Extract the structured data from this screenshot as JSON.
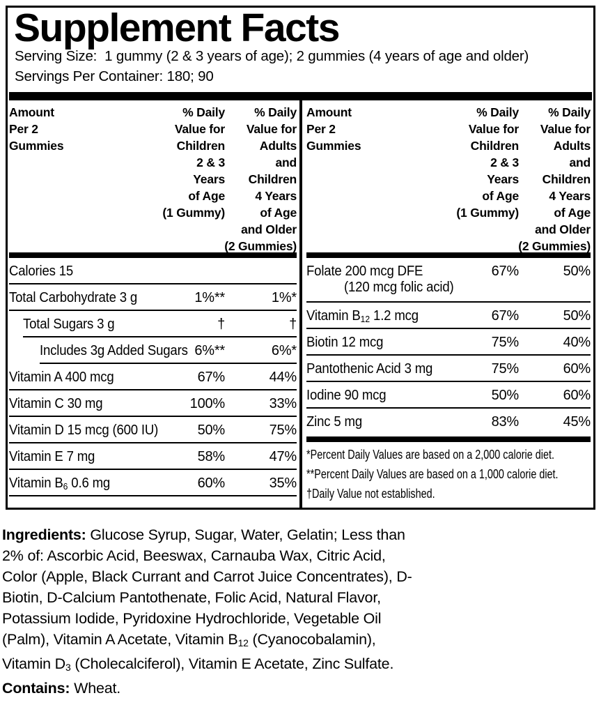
{
  "colors": {
    "text": "#000000",
    "background": "#ffffff"
  },
  "facts": {
    "title": "Supplement Facts",
    "serving_size_line": "Serving Size:  1 gummy (2 & 3 years of age); 2 gummies (4 years of age and older)",
    "servings_per_container_line": "Servings Per Container: 180; 90",
    "header": {
      "amount": "Amount\nPer 2\nGummies",
      "children_dv": "% Daily\nValue for\nChildren\n2 & 3\nYears\nof Age\n(1 Gummy)",
      "adults_dv": "% Daily\nValue for\nAdults\nand\nChildren\n4 Years\nof Age\nand Older\n(2 Gummies)"
    },
    "left_rows": [
      {
        "pre": "Calories 15",
        "child": "",
        "adult": ""
      },
      {
        "pre": "Total Carbohydrate 3 g",
        "child": "1%**",
        "adult": "1%*"
      },
      {
        "pre": "Total Sugars 3 g",
        "child": "†",
        "adult": "†"
      },
      {
        "pre": "Includes 3g Added Sugars",
        "child": "6%**",
        "adult": "6%*"
      },
      {
        "pre": "Vitamin A 400 mcg",
        "child": "67%",
        "adult": "44%"
      },
      {
        "pre": "Vitamin C 30 mg",
        "child": "100%",
        "adult": "33%"
      },
      {
        "pre": "Vitamin D 15 mcg (600 IU)",
        "child": "50%",
        "adult": "75%"
      },
      {
        "pre": "Vitamin E 7 mg",
        "child": "58%",
        "adult": "47%"
      },
      {
        "pre": "Vitamin B",
        "sub": "6",
        "post": " 0.6 mg",
        "child": "60%",
        "adult": "35%"
      }
    ],
    "right_rows": [
      {
        "pre": "Folate 200 mcg DFE",
        "line2": "(120 mcg folic acid)",
        "child": "67%",
        "adult": "50%"
      },
      {
        "pre": "Vitamin B",
        "sub": "12",
        "post": " 1.2 mcg",
        "child": "67%",
        "adult": "50%"
      },
      {
        "pre": "Biotin 12 mcg",
        "child": "75%",
        "adult": "40%"
      },
      {
        "pre": "Pantothenic Acid 3 mg",
        "child": "75%",
        "adult": "60%"
      },
      {
        "pre": "Iodine 90 mcg",
        "child": "50%",
        "adult": "60%"
      },
      {
        "pre": "Zinc 5 mg",
        "child": "83%",
        "adult": "45%"
      }
    ],
    "footnotes": [
      "*Percent Daily Values are based on a 2,000 calorie diet.",
      "**Percent Daily Values are based on a 1,000 calorie diet.",
      "†Daily Value not established."
    ]
  },
  "ingredients": {
    "heading": "Ingredients:",
    "part1": " Glucose Syrup, Sugar, Water, Gelatin; Less than 2% of: Ascorbic Acid, Beeswax, Carnauba Wax, Citric Acid, Color (Apple, Black Currant and Carrot Juice Concentrates), D-Biotin, D-Calcium Pantothenate, Folic Acid, Natural Flavor, Potassium Iodide, Pyridoxine Hydrochloride, Vegetable Oil (Palm), Vitamin A Acetate, Vitamin B",
    "sub1": "12",
    "part2": " (Cyanocobalamin), Vitamin D",
    "sub2": "3",
    "part3": " (Cholecalciferol), Vitamin E Acetate, Zinc Sulfate."
  },
  "contains": {
    "heading": "Contains:",
    "text": " Wheat."
  }
}
